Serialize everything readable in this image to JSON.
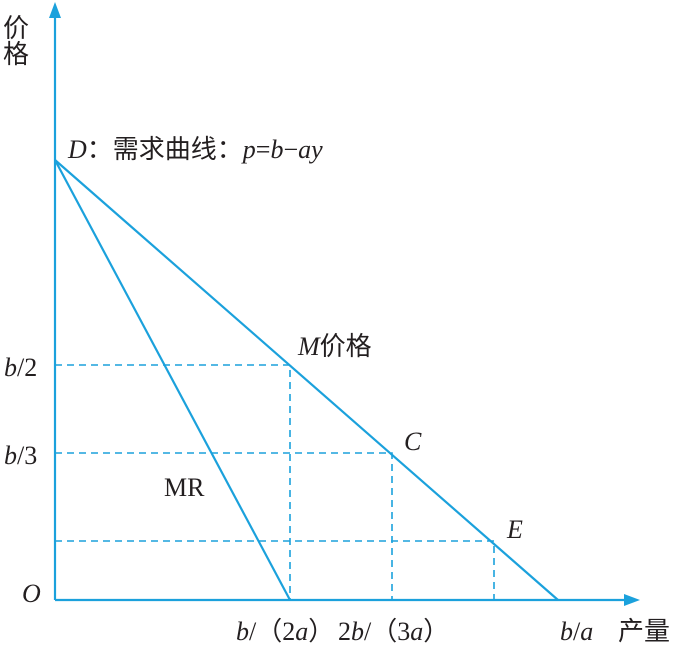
{
  "axes": {
    "y_label": "价格",
    "x_label": "产量",
    "origin": "O"
  },
  "demand_label": [
    "D",
    "：需求曲线：",
    "p",
    "=",
    "b",
    "−",
    "ay"
  ],
  "mr_label": "MR",
  "points": {
    "m": [
      "M",
      "价格"
    ],
    "c": "C",
    "e": "E"
  },
  "y_ticks": [
    [
      "b",
      "/2"
    ],
    [
      "b",
      "/3"
    ]
  ],
  "x_ticks": [
    [
      "b",
      "/（2",
      "a",
      "）"
    ],
    [
      "2",
      "b",
      "/（3",
      "a",
      "）"
    ],
    [
      "b",
      "/",
      "a"
    ]
  ]
}
